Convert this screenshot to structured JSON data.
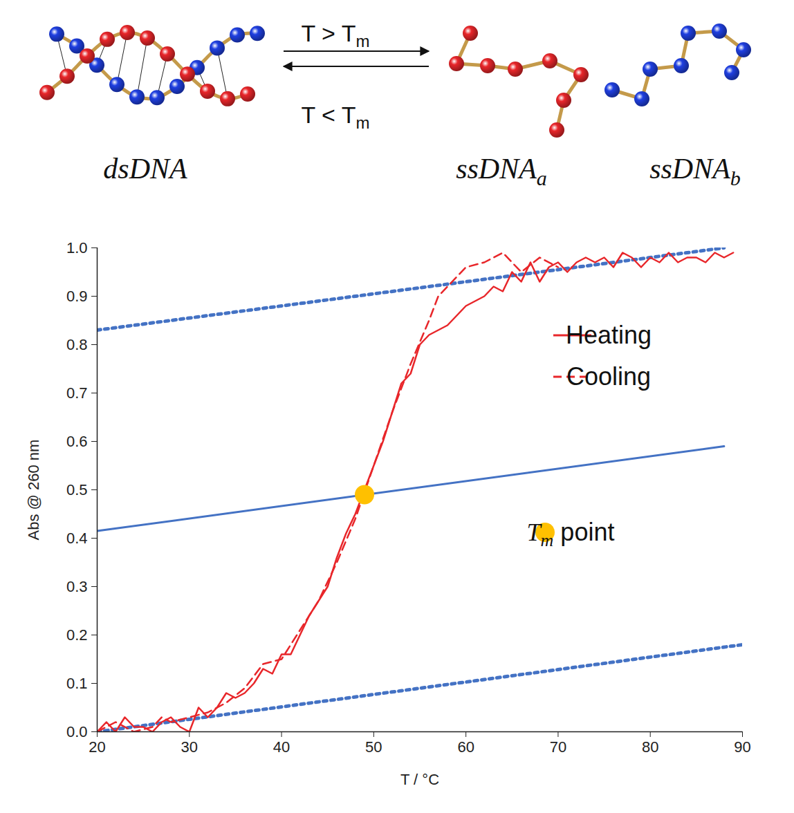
{
  "diagram": {
    "left": {
      "text": "dsDNA"
    },
    "arrows": [
      {
        "text": "T > T",
        "sub": "m",
        "direction": "right"
      },
      {
        "text": "T < T",
        "sub": "m",
        "direction": "left"
      }
    ],
    "right": [
      {
        "text": "ssDNA",
        "sub": "a",
        "color": "#e8262a"
      },
      {
        "text": "ssDNA",
        "sub": "b",
        "color": "#1f3fe0"
      }
    ]
  },
  "chart_data": {
    "type": "line",
    "x_label": "T / °C",
    "y_label": "Abs @ 260 nm",
    "xlim": [
      20,
      90
    ],
    "ylim": [
      0,
      1.0
    ],
    "xticks": [
      20,
      30,
      40,
      50,
      60,
      70,
      80,
      90
    ],
    "yticks": [
      {
        "value": 0,
        "label": "0.0"
      },
      0.1,
      0.2,
      0.3,
      0.4,
      0.5,
      0.6,
      0.7,
      0.8,
      0.9,
      {
        "value": 1.0,
        "label": "1.0"
      }
    ],
    "legend": "top-right",
    "series": [
      {
        "name": "Heating",
        "color": "#e8262a",
        "line_style": "solid",
        "x": [
          20,
          21,
          22,
          23,
          24,
          25,
          26,
          27,
          28,
          29,
          30,
          31,
          32,
          33,
          34,
          35,
          36,
          37,
          38,
          39,
          40,
          41,
          42,
          43,
          44,
          45,
          46,
          47,
          48,
          49,
          50,
          51,
          52,
          53,
          54,
          55,
          56,
          57,
          58,
          59,
          60,
          61,
          62,
          63,
          64,
          65,
          66,
          67,
          68,
          69,
          70,
          71,
          72,
          73,
          74,
          75,
          76,
          77,
          78,
          79,
          80,
          81,
          82,
          83,
          84,
          85,
          86,
          87,
          88,
          89
        ],
        "values": [
          0.0,
          0.02,
          0.0,
          0.03,
          0.01,
          0.01,
          0.0,
          0.02,
          0.03,
          0.01,
          0.0,
          0.05,
          0.03,
          0.05,
          0.08,
          0.07,
          0.08,
          0.1,
          0.13,
          0.12,
          0.16,
          0.16,
          0.2,
          0.24,
          0.27,
          0.3,
          0.36,
          0.41,
          0.45,
          0.5,
          0.55,
          0.6,
          0.66,
          0.72,
          0.74,
          0.8,
          0.82,
          0.83,
          0.84,
          0.86,
          0.88,
          0.89,
          0.9,
          0.92,
          0.91,
          0.95,
          0.93,
          0.97,
          0.93,
          0.96,
          0.97,
          0.95,
          0.97,
          0.98,
          0.97,
          0.98,
          0.96,
          0.99,
          0.98,
          0.96,
          0.98,
          0.97,
          0.99,
          0.97,
          0.98,
          0.98,
          0.97,
          0.99,
          0.98,
          0.99
        ]
      },
      {
        "name": "Cooling",
        "color": "#e8262a",
        "line_style": "dashed",
        "x": [
          20,
          22,
          24,
          26,
          27,
          28,
          30,
          32,
          34,
          36,
          38,
          40,
          42,
          44,
          46,
          48,
          50,
          52,
          54,
          56,
          57,
          58,
          60,
          62,
          64,
          66,
          68,
          70
        ],
        "values": [
          0.0,
          0.02,
          0.0,
          0.01,
          0.03,
          0.02,
          0.03,
          0.04,
          0.06,
          0.09,
          0.14,
          0.15,
          0.21,
          0.27,
          0.35,
          0.44,
          0.55,
          0.66,
          0.76,
          0.85,
          0.9,
          0.92,
          0.96,
          0.97,
          0.99,
          0.95,
          0.98,
          0.96
        ]
      }
    ],
    "reference_lines": [
      {
        "color": "#4472c4",
        "line_style": "dotted",
        "x": [
          20,
          88
        ],
        "values": [
          0.83,
          1.0
        ]
      },
      {
        "color": "#4472c4",
        "line_style": "solid",
        "x": [
          20,
          88
        ],
        "values": [
          0.415,
          0.59
        ]
      },
      {
        "color": "#4472c4",
        "line_style": "dotted",
        "x": [
          20,
          90
        ],
        "values": [
          0.0,
          0.18
        ]
      }
    ],
    "points": [
      {
        "label": {
          "text": "T",
          "sub": "m",
          "after": " point"
        },
        "color": "#ffc000",
        "x": 49,
        "value": 0.49
      }
    ]
  }
}
